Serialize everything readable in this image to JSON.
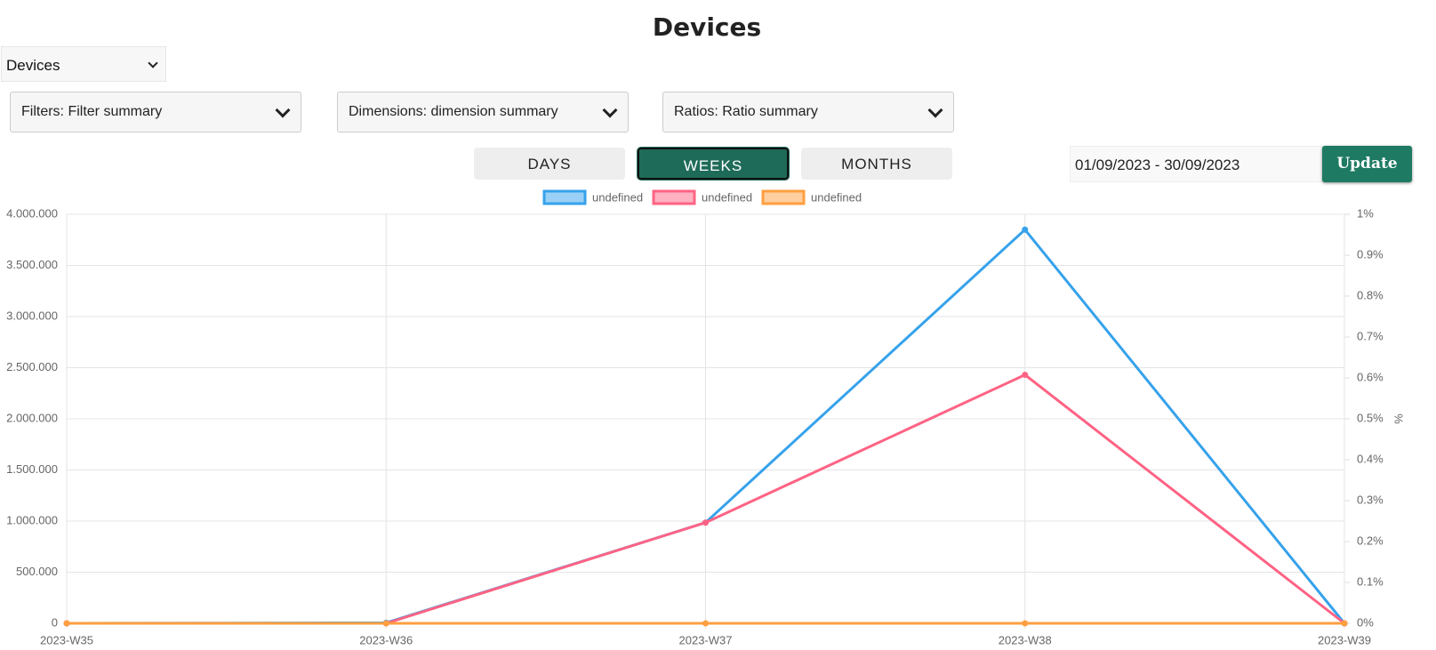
{
  "page": {
    "title": "Devices",
    "selector": "Devices",
    "dropdowns": [
      "Filters: Filter summary",
      "Dimensions: dimension summary",
      "Ratios: Ratio summary"
    ],
    "periods": [
      "DAYS",
      "WEEKS",
      "MONTHS"
    ],
    "active_period": 1,
    "date_range": "01/09/2023 - 30/09/2023",
    "update_button": "Update"
  },
  "chart_data": {
    "type": "line",
    "categories": [
      "2023-W35",
      "2023-W36",
      "2023-W37",
      "2023-W38",
      "2023-W39"
    ],
    "series": [
      {
        "name": "undefined",
        "color": "#36a2eb",
        "values": [
          0,
          5000,
          985000,
          3850000,
          0
        ]
      },
      {
        "name": "undefined",
        "color": "#ff6384",
        "values": [
          0,
          0,
          985000,
          2430000,
          0
        ]
      },
      {
        "name": "undefined",
        "color": "#ff9f40",
        "values": [
          0,
          0,
          0,
          0,
          0
        ],
        "axis": "y2"
      }
    ],
    "ylim": [
      0,
      4000000
    ],
    "yticks": [
      0,
      {
        "value": 500000,
        "label": "500.000"
      },
      {
        "value": 1000000,
        "label": "1.000.000"
      },
      {
        "value": 1500000,
        "label": "1.500.000"
      },
      {
        "value": 2000000,
        "label": "2.000.000"
      },
      {
        "value": 2500000,
        "label": "2.500.000"
      },
      {
        "value": 3000000,
        "label": "3.000.000"
      },
      {
        "value": 3500000,
        "label": "3.500.000"
      },
      {
        "value": 4000000,
        "label": "4.000.000"
      }
    ],
    "y2lim": [
      0,
      1
    ],
    "y2ticks": [
      {
        "value": 0,
        "label": "0%"
      },
      {
        "value": 0.1,
        "label": "0.1%"
      },
      {
        "value": 0.2,
        "label": "0.2%"
      },
      {
        "value": 0.3,
        "label": "0.3%"
      },
      {
        "value": 0.4,
        "label": "0.4%"
      },
      {
        "value": 0.5,
        "label": "0.5%"
      },
      {
        "value": 0.6,
        "label": "0.6%"
      },
      {
        "value": 0.7,
        "label": "0.7%"
      },
      {
        "value": 0.8,
        "label": "0.8%"
      },
      {
        "value": 0.9,
        "label": "0.9%"
      },
      {
        "value": 1,
        "label": "1%"
      }
    ],
    "y2_label": "%",
    "grid": true,
    "legend": "top"
  }
}
